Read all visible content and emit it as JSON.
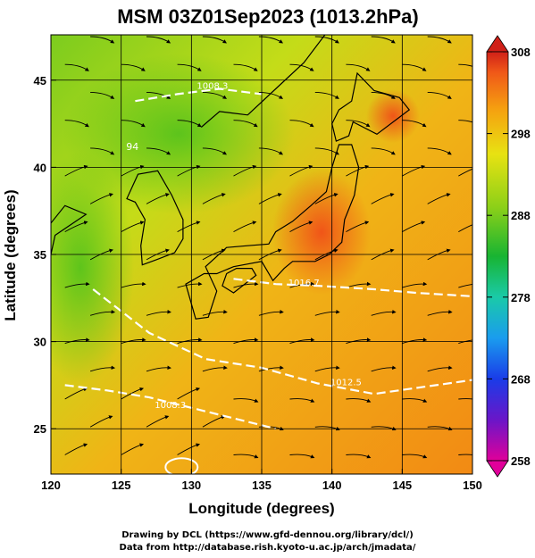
{
  "chart_data": {
    "type": "heatmap",
    "title": "MSM 03Z01Sep2023 (1013.2hPa)",
    "xlabel": "Longitude (degrees)",
    "ylabel": "Latitude  (degrees)",
    "xlim": [
      120,
      150
    ],
    "ylim": [
      22.4,
      47.6
    ],
    "xticks": [
      "120",
      "125",
      "130",
      "135",
      "140",
      "145",
      "150"
    ],
    "yticks": [
      "25",
      "30",
      "35",
      "40",
      "45"
    ],
    "ytick_values": [
      25,
      30,
      35,
      40,
      45
    ],
    "grid": true,
    "colorbar": {
      "min": 258,
      "max": 308,
      "ticks": [
        "308",
        "298",
        "288",
        "278",
        "268",
        "258"
      ],
      "tick_values": [
        308,
        298,
        288,
        278,
        268,
        258
      ],
      "colormap": [
        "#e0009a",
        "#6a16c8",
        "#1a3ce8",
        "#1a9cee",
        "#1acaa8",
        "#18b432",
        "#8cd018",
        "#e8e212",
        "#f5a010",
        "#f05818",
        "#d02018"
      ]
    },
    "isobars": [
      {
        "label": "1008.3",
        "lon": 128.5,
        "lat": 26.2
      },
      {
        "label": "1012.5",
        "lon": 141.0,
        "lat": 27.5
      },
      {
        "label": "1016.7",
        "lon": 138.0,
        "lat": 33.2
      },
      {
        "label": "1008.3",
        "lon": 131.5,
        "lat": 44.5
      }
    ],
    "temperature_labels": [
      {
        "label": "94",
        "lon": 125.8,
        "lat": 41.0
      }
    ],
    "wind_field": "streamlines"
  },
  "credits": {
    "line1": "Drawing by DCL (https://www.gfd-dennou.org/library/dcl/)",
    "line2": "Data from http://database.rish.kyoto-u.ac.jp/arch/jmadata/"
  }
}
